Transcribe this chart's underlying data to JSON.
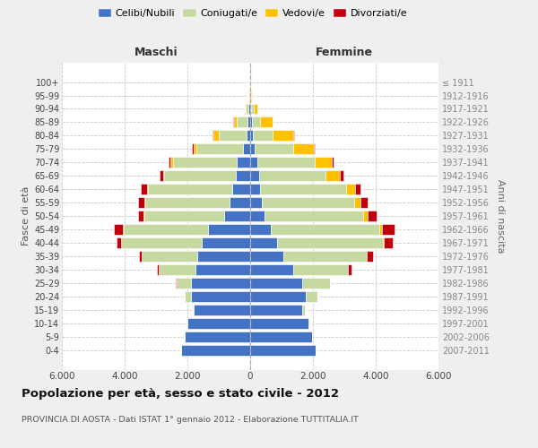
{
  "age_groups": [
    "100+",
    "95-99",
    "90-94",
    "85-89",
    "80-84",
    "75-79",
    "70-74",
    "65-69",
    "60-64",
    "55-59",
    "50-54",
    "45-49",
    "40-44",
    "35-39",
    "30-34",
    "25-29",
    "20-24",
    "15-19",
    "10-14",
    "5-9",
    "0-4"
  ],
  "birth_years": [
    "≤ 1911",
    "1912-1916",
    "1917-1921",
    "1922-1926",
    "1927-1931",
    "1932-1936",
    "1937-1941",
    "1942-1946",
    "1947-1951",
    "1952-1956",
    "1957-1961",
    "1962-1966",
    "1967-1971",
    "1972-1976",
    "1977-1981",
    "1982-1986",
    "1987-1991",
    "1992-1996",
    "1997-2001",
    "2002-2006",
    "2007-2011"
  ],
  "maschi": {
    "celibi": [
      15,
      20,
      50,
      90,
      120,
      230,
      420,
      460,
      570,
      650,
      820,
      1350,
      1550,
      1680,
      1750,
      1880,
      1900,
      1790,
      2000,
      2100,
      2200
    ],
    "coniugati": [
      5,
      20,
      80,
      340,
      870,
      1480,
      2050,
      2280,
      2680,
      2700,
      2550,
      2680,
      2560,
      1780,
      1170,
      470,
      175,
      45,
      15,
      8,
      3
    ],
    "vedovi": [
      2,
      8,
      35,
      90,
      180,
      95,
      65,
      40,
      35,
      25,
      20,
      25,
      8,
      4,
      2,
      2,
      1,
      0,
      0,
      0,
      0
    ],
    "divorziati": [
      1,
      4,
      8,
      20,
      25,
      45,
      75,
      110,
      195,
      195,
      195,
      295,
      145,
      90,
      45,
      18,
      4,
      2,
      1,
      1,
      1
    ]
  },
  "femmine": {
    "nubili": [
      10,
      18,
      35,
      55,
      75,
      140,
      225,
      275,
      325,
      375,
      460,
      660,
      860,
      1060,
      1360,
      1660,
      1760,
      1660,
      1860,
      1970,
      2080
    ],
    "coniugate": [
      4,
      22,
      75,
      270,
      640,
      1220,
      1820,
      2130,
      2730,
      2950,
      3140,
      3450,
      3360,
      2650,
      1760,
      870,
      375,
      88,
      22,
      8,
      3
    ],
    "vedove": [
      4,
      25,
      110,
      380,
      670,
      660,
      560,
      465,
      275,
      175,
      135,
      88,
      42,
      16,
      8,
      4,
      2,
      1,
      0,
      0,
      0
    ],
    "divorziate": [
      1,
      4,
      8,
      18,
      22,
      40,
      65,
      88,
      185,
      235,
      285,
      390,
      285,
      185,
      88,
      22,
      8,
      2,
      1,
      1,
      1
    ]
  },
  "colors": {
    "celibi": "#4472c4",
    "coniugati": "#c5d9a0",
    "vedovi": "#ffc000",
    "divorziati": "#c0000b"
  },
  "xlim": 6000,
  "title": "Popolazione per età, sesso e stato civile - 2012",
  "subtitle": "PROVINCIA DI AOSTA - Dati ISTAT 1° gennaio 2012 - Elaborazione TUTTITALIA.IT",
  "ylabel_left": "Fasce di età",
  "ylabel_right": "Anni di nascita",
  "xlabel_maschi": "Maschi",
  "xlabel_femmine": "Femmine",
  "bg_color": "#efefef",
  "plot_bg": "#ffffff",
  "legend_labels": [
    "Celibi/Nubili",
    "Coniugati/e",
    "Vedovi/e",
    "Divorziati/e"
  ]
}
